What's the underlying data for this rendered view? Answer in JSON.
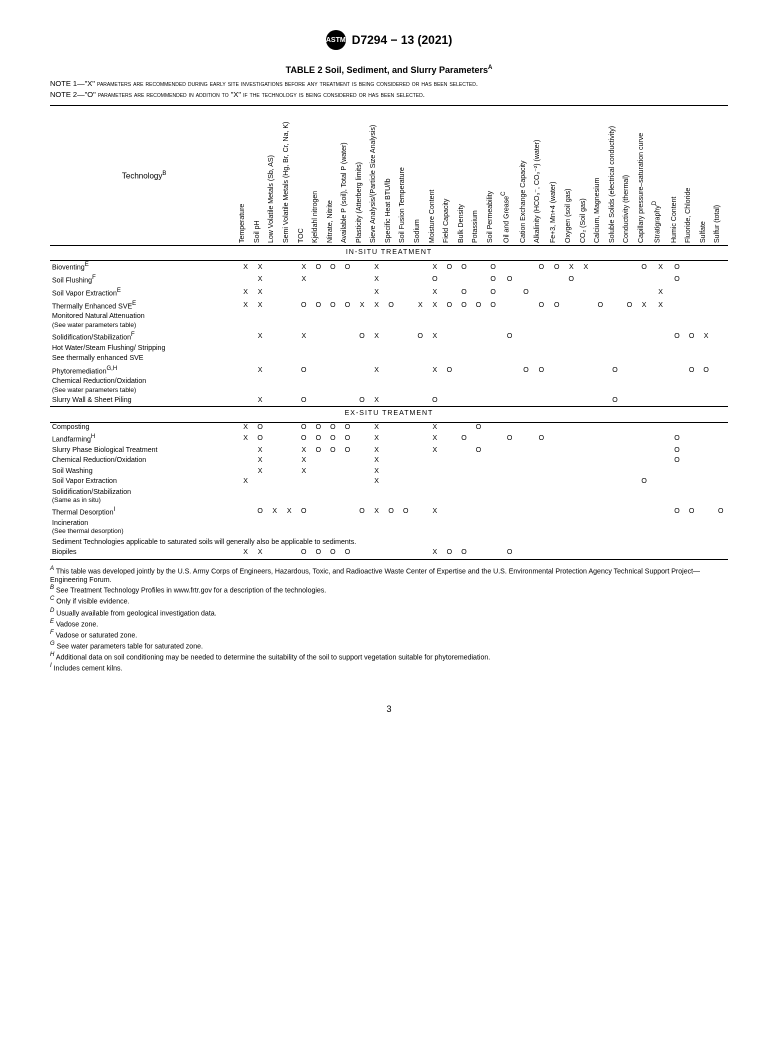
{
  "header": {
    "designation": "D7294 − 13 (2021)"
  },
  "table_title": "TABLE 2 Soil, Sediment, and Slurry Parameters",
  "table_title_sup": "A",
  "note1": "NOTE 1—\"X\" parameters are recommended during early site investigations before any treatment is being considered or has been selected.",
  "note2": "NOTE 2—\"O\" parameters are recommended in addition to \"X\" if the technology is being considered or has been selected.",
  "tech_header": "Technology",
  "tech_header_sup": "B",
  "columns": [
    "Temperature",
    "Soil pH",
    "Low Volatile Metals (Sb, AS)",
    "Semi Volatile Metals (Hg, Br, Cr, Na, K)",
    "TOC",
    "Kjeldahl nitrogen",
    "Nitrate, Nitrite",
    "Available P (soil), Total P (water)",
    "Plasticity (Atterberg limits)",
    "Sieve Analysis/(Particle Size Analysis)",
    "Specific Heat BTU/lb",
    "Soil Fusion Temperature",
    "Sodium",
    "Moisture Content",
    "Field Capacity",
    "Bulk Density",
    "Potassium",
    "Soil Permeability",
    "Oil and Grease",
    "Cation Exchange Capacity",
    "Alkalinity (HCO₃⁻, CO₃⁻²) (water)",
    "Fe+3, Mn+4 (water)",
    "Oxygen (soil gas)",
    "CO₂ (Soil gas)",
    "Calcium, Magnesium",
    "Soluble Solids (electrical conductivity)",
    "Conductivity (thermal)",
    "Capillary pressure–saturation curve",
    "Stratigraphy",
    "Humic Content",
    "Fluoride, Chloride",
    "Sulfate",
    "Sulfur (total)"
  ],
  "col_sup": {
    "18": "C",
    "28": "D"
  },
  "sections": [
    {
      "label": "IN-SITU TREATMENT",
      "rows": [
        {
          "label": "Bioventing",
          "sup": "E",
          "cells": [
            "X",
            "X",
            "",
            "",
            "X",
            "O",
            "O",
            "O",
            "",
            "X",
            "",
            "",
            "",
            "X",
            "O",
            "O",
            "",
            "O",
            "",
            "",
            "O",
            "O",
            "X",
            "X",
            "",
            "",
            "",
            "O",
            "X",
            "O",
            "",
            "",
            ""
          ]
        },
        {
          "label": "Soil Flushing",
          "sup": "F",
          "cells": [
            "",
            "X",
            "",
            "",
            "X",
            "",
            "",
            "",
            "",
            "X",
            "",
            "",
            "",
            "O",
            "",
            "",
            "",
            "O",
            "O",
            "",
            "",
            "",
            "O",
            "",
            "",
            "",
            "",
            "",
            "",
            "O",
            "",
            "",
            ""
          ]
        },
        {
          "label": "Soil Vapor Extraction",
          "sup": "E",
          "cells": [
            "X",
            "X",
            "",
            "",
            "",
            "",
            "",
            "",
            "",
            "X",
            "",
            "",
            "",
            "X",
            "",
            "O",
            "",
            "O",
            "",
            "O",
            "",
            "",
            "",
            "",
            "",
            "",
            "",
            "",
            "X",
            "",
            "",
            "",
            ""
          ]
        },
        {
          "label": "Thermally Enhanced SVE",
          "sup": "E",
          "cells": [
            "X",
            "X",
            "",
            "",
            "O",
            "O",
            "O",
            "O",
            "X",
            "X",
            "O",
            "",
            "X",
            "X",
            "O",
            "O",
            "O",
            "O",
            "",
            "",
            "O",
            "O",
            "",
            "",
            "O",
            "",
            "O",
            "X",
            "X",
            "",
            "",
            "",
            ""
          ]
        },
        {
          "label": "Monitored Natural Attenuation\n(See water parameters table)",
          "sup": "",
          "cells": [
            "",
            "",
            "",
            "",
            "",
            "",
            "",
            "",
            "",
            "",
            "",
            "",
            "",
            "",
            "",
            "",
            "",
            "",
            "",
            "",
            "",
            "",
            "",
            "",
            "",
            "",
            "",
            "",
            "",
            "",
            "",
            "",
            ""
          ]
        },
        {
          "label": "Solidification/Stabilization",
          "sup": "F",
          "cells": [
            "",
            "X",
            "",
            "",
            "X",
            "",
            "",
            "",
            "O",
            "X",
            "",
            "",
            "O",
            "X",
            "",
            "",
            "",
            "",
            "O",
            "",
            "",
            "",
            "",
            "",
            "",
            "",
            "",
            "",
            "",
            "O",
            "O",
            "X",
            ""
          ]
        },
        {
          "label": "Hot Water/Steam Flushing/ Stripping",
          "sup": "",
          "cells": [
            "",
            "",
            "",
            "",
            "",
            "",
            "",
            "",
            "",
            "",
            "",
            "",
            "",
            "",
            "",
            "",
            "",
            "",
            "",
            "",
            "",
            "",
            "",
            "",
            "",
            "",
            "",
            "",
            "",
            "",
            "",
            "",
            ""
          ]
        },
        {
          "label": "See thermally enhanced SVE",
          "sup": "",
          "cells": [
            "",
            "",
            "",
            "",
            "",
            "",
            "",
            "",
            "",
            "",
            "",
            "",
            "",
            "",
            "",
            "",
            "",
            "",
            "",
            "",
            "",
            "",
            "",
            "",
            "",
            "",
            "",
            "",
            "",
            "",
            "",
            "",
            ""
          ]
        },
        {
          "label": "Phytoremediation",
          "sup": "G,H",
          "cells": [
            "",
            "X",
            "",
            "",
            "O",
            "",
            "",
            "",
            "",
            "X",
            "",
            "",
            "",
            "X",
            "O",
            "",
            "",
            "",
            "",
            "O",
            "O",
            "",
            "",
            "",
            "",
            "O",
            "",
            "",
            "",
            "",
            "O",
            "O",
            ""
          ]
        },
        {
          "label": "Chemical Reduction/Oxidation\n(See water parameters table)",
          "sup": "",
          "cells": [
            "",
            "",
            "",
            "",
            "",
            "",
            "",
            "",
            "",
            "",
            "",
            "",
            "",
            "",
            "",
            "",
            "",
            "",
            "",
            "",
            "",
            "",
            "",
            "",
            "",
            "",
            "",
            "",
            "",
            "",
            "",
            "",
            ""
          ]
        },
        {
          "label": "Slurry Wall & Sheet Piling",
          "sup": "",
          "cells": [
            "",
            "X",
            "",
            "",
            "O",
            "",
            "",
            "",
            "O",
            "X",
            "",
            "",
            "",
            "O",
            "",
            "",
            "",
            "",
            "",
            "",
            "",
            "",
            "",
            "",
            "",
            "O",
            "",
            "",
            "",
            "",
            "",
            "",
            ""
          ]
        }
      ]
    },
    {
      "label": "EX-SITU TREATMENT",
      "rows": [
        {
          "label": "Composting",
          "sup": "",
          "cells": [
            "X",
            "O",
            "",
            "",
            "O",
            "O",
            "O",
            "O",
            "",
            "X",
            "",
            "",
            "",
            "X",
            "",
            "",
            "O",
            "",
            "",
            "",
            "",
            "",
            "",
            "",
            "",
            "",
            "",
            "",
            "",
            "",
            "",
            "",
            ""
          ]
        },
        {
          "label": "Landfarming",
          "sup": "H",
          "cells": [
            "X",
            "O",
            "",
            "",
            "O",
            "O",
            "O",
            "O",
            "",
            "X",
            "",
            "",
            "",
            "X",
            "",
            "O",
            "",
            "",
            "O",
            "",
            "O",
            "",
            "",
            "",
            "",
            "",
            "",
            "",
            "",
            "O",
            "",
            "",
            ""
          ]
        },
        {
          "label": "Slurry Phase Biological Treatment",
          "sup": "",
          "cells": [
            "",
            "X",
            "",
            "",
            "X",
            "O",
            "O",
            "O",
            "",
            "X",
            "",
            "",
            "",
            "X",
            "",
            "",
            "O",
            "",
            "",
            "",
            "",
            "",
            "",
            "",
            "",
            "",
            "",
            "",
            "",
            "O",
            "",
            "",
            ""
          ]
        },
        {
          "label": "Chemical Reduction/Oxidation",
          "sup": "",
          "cells": [
            "",
            "X",
            "",
            "",
            "X",
            "",
            "",
            "",
            "",
            "X",
            "",
            "",
            "",
            "",
            "",
            "",
            "",
            "",
            "",
            "",
            "",
            "",
            "",
            "",
            "",
            "",
            "",
            "",
            "",
            "O",
            "",
            "",
            ""
          ]
        },
        {
          "label": "Soil Washing",
          "sup": "",
          "cells": [
            "",
            "X",
            "",
            "",
            "X",
            "",
            "",
            "",
            "",
            "X",
            "",
            "",
            "",
            "",
            "",
            "",
            "",
            "",
            "",
            "",
            "",
            "",
            "",
            "",
            "",
            "",
            "",
            "",
            "",
            "",
            "",
            "",
            ""
          ]
        },
        {
          "label": "Soil Vapor Extraction",
          "sup": "",
          "cells": [
            "X",
            "",
            "",
            "",
            "",
            "",
            "",
            "",
            "",
            "X",
            "",
            "",
            "",
            "",
            "",
            "",
            "",
            "",
            "",
            "",
            "",
            "",
            "",
            "",
            "",
            "",
            "",
            "O",
            "",
            "",
            "",
            "",
            ""
          ]
        },
        {
          "label": "Solidification/Stabilization\n(Same as in situ)",
          "sup": "",
          "cells": [
            "",
            "",
            "",
            "",
            "",
            "",
            "",
            "",
            "",
            "",
            "",
            "",
            "",
            "",
            "",
            "",
            "",
            "",
            "",
            "",
            "",
            "",
            "",
            "",
            "",
            "",
            "",
            "",
            "",
            "",
            "",
            "",
            ""
          ]
        },
        {
          "label": "Thermal Desorption",
          "sup": "I",
          "cells": [
            "",
            "O",
            "X",
            "X",
            "O",
            "",
            "",
            "",
            "O",
            "X",
            "O",
            "O",
            "",
            "X",
            "",
            "",
            "",
            "",
            "",
            "",
            "",
            "",
            "",
            "",
            "",
            "",
            "",
            "",
            "",
            "O",
            "O",
            "",
            "O"
          ]
        },
        {
          "label": "Incineration\n(See thermal desorption)",
          "sup": "",
          "cells": [
            "",
            "",
            "",
            "",
            "",
            "",
            "",
            "",
            "",
            "",
            "",
            "",
            "",
            "",
            "",
            "",
            "",
            "",
            "",
            "",
            "",
            "",
            "",
            "",
            "",
            "",
            "",
            "",
            "",
            "",
            "",
            "",
            ""
          ]
        },
        {
          "label": "Sediment Technologies applicable to saturated soils will generally also be applicable to sediments.",
          "sup": "",
          "cells": []
        },
        {
          "label": "Biopiles",
          "sup": "",
          "cells": [
            "X",
            "X",
            "",
            "",
            "O",
            "O",
            "O",
            "O",
            "",
            "",
            "",
            "",
            "",
            "X",
            "O",
            "O",
            "",
            "",
            "O",
            "",
            "",
            "",
            "",
            "",
            "",
            "",
            "",
            "",
            "",
            "",
            "",
            "",
            ""
          ]
        }
      ]
    }
  ],
  "footnotes": [
    {
      "sup": "A",
      "text": "This table was developed jointly by the U.S. Army Corps of Engineers, Hazardous, Toxic, and Radioactive Waste Center of Expertise and the U.S. Environmental Protection Agency Technical Support Project—Engineering Forum."
    },
    {
      "sup": "B",
      "text": "See Treatment Technology Profiles in www.frtr.gov for a description of the technologies."
    },
    {
      "sup": "C",
      "text": "Only if visible evidence."
    },
    {
      "sup": "D",
      "text": "Usually available from geological investigation data."
    },
    {
      "sup": "E",
      "text": "Vadose zone."
    },
    {
      "sup": "F",
      "text": "Vadose or saturated zone."
    },
    {
      "sup": "G",
      "text": "See water parameters table for saturated zone."
    },
    {
      "sup": "H",
      "text": "Additional data on soil conditioning may be needed to determine the suitability of the soil to support vegetation suitable for phytoremediation."
    },
    {
      "sup": "I",
      "text": "Includes cement kilns."
    }
  ],
  "page_number": "3"
}
